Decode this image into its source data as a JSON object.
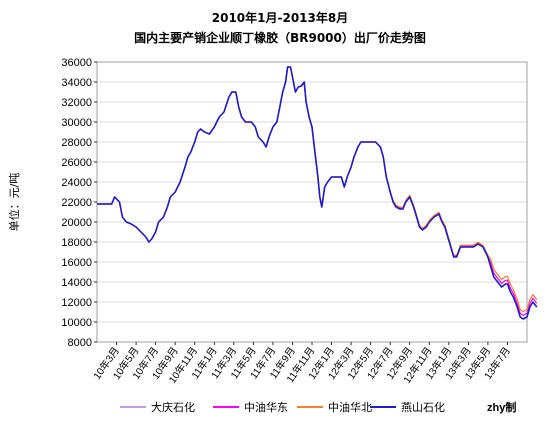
{
  "chart_data": {
    "type": "line",
    "title_line1": "2010年1月-2013年8月",
    "title_line2": "国内主要产销企业顺丁橡胶（BR9000）出厂价走势图",
    "ylabel": "单位：元/吨",
    "ylim": [
      8000,
      36000
    ],
    "ytick_step": 2000,
    "yticks": [
      "8000",
      "10000",
      "12000",
      "14000",
      "16000",
      "18000",
      "20000",
      "22000",
      "24000",
      "26000",
      "28000",
      "30000",
      "32000",
      "34000",
      "36000"
    ],
    "xlim": [
      0,
      44
    ],
    "x_ticks": [
      {
        "x": 2,
        "label": "10年3月"
      },
      {
        "x": 4,
        "label": "10年5月"
      },
      {
        "x": 6,
        "label": "10年7月"
      },
      {
        "x": 8,
        "label": "10年9月"
      },
      {
        "x": 10,
        "label": "10年11月"
      },
      {
        "x": 12,
        "label": "11年1月"
      },
      {
        "x": 14,
        "label": "11年3月"
      },
      {
        "x": 16,
        "label": "11年5月"
      },
      {
        "x": 18,
        "label": "11年7月"
      },
      {
        "x": 20,
        "label": "11年9月"
      },
      {
        "x": 22,
        "label": "11年11月"
      },
      {
        "x": 24,
        "label": "12年1月"
      },
      {
        "x": 26,
        "label": "12年3月"
      },
      {
        "x": 28,
        "label": "12年5月"
      },
      {
        "x": 30,
        "label": "12年7月"
      },
      {
        "x": 32,
        "label": "12年9月"
      },
      {
        "x": 34,
        "label": "12年11月"
      },
      {
        "x": 36,
        "label": "13年1月"
      },
      {
        "x": 38,
        "label": "13年3月"
      },
      {
        "x": 40,
        "label": "13年5月"
      },
      {
        "x": 42,
        "label": "13年7月"
      }
    ],
    "grid": true,
    "legend_position": "bottom",
    "credit": "zhy制",
    "base_points": [
      [
        0,
        21800
      ],
      [
        1.5,
        21800
      ],
      [
        1.8,
        22500
      ],
      [
        2.3,
        22000
      ],
      [
        2.6,
        20500
      ],
      [
        3,
        20000
      ],
      [
        3.5,
        19800
      ],
      [
        4,
        19500
      ],
      [
        4.5,
        19000
      ],
      [
        5,
        18500
      ],
      [
        5.3,
        18000
      ],
      [
        5.6,
        18300
      ],
      [
        6,
        19000
      ],
      [
        6.3,
        20000
      ],
      [
        6.8,
        20500
      ],
      [
        7.2,
        21500
      ],
      [
        7.5,
        22500
      ],
      [
        8,
        23000
      ],
      [
        8.5,
        24000
      ],
      [
        9,
        25500
      ],
      [
        9.3,
        26500
      ],
      [
        9.6,
        27000
      ],
      [
        10,
        28000
      ],
      [
        10.3,
        29000
      ],
      [
        10.6,
        29300
      ],
      [
        11,
        29000
      ],
      [
        11.5,
        28800
      ],
      [
        12,
        29500
      ],
      [
        12.5,
        30500
      ],
      [
        13,
        31000
      ],
      [
        13.5,
        32500
      ],
      [
        13.8,
        33000
      ],
      [
        14.2,
        33000
      ],
      [
        14.5,
        31500
      ],
      [
        14.8,
        30500
      ],
      [
        15.2,
        30000
      ],
      [
        15.8,
        30000
      ],
      [
        16.2,
        29500
      ],
      [
        16.5,
        28500
      ],
      [
        17,
        28000
      ],
      [
        17.3,
        27500
      ],
      [
        17.6,
        28500
      ],
      [
        18,
        29500
      ],
      [
        18.4,
        30000
      ],
      [
        18.7,
        31500
      ],
      [
        19,
        33000
      ],
      [
        19.3,
        34000
      ],
      [
        19.5,
        35500
      ],
      [
        19.8,
        35500
      ],
      [
        20,
        34500
      ],
      [
        20.3,
        33000
      ],
      [
        20.6,
        33500
      ],
      [
        20.9,
        33600
      ],
      [
        21.2,
        34000
      ],
      [
        21.4,
        32000
      ],
      [
        21.7,
        30500
      ],
      [
        22,
        29500
      ],
      [
        22.3,
        27000
      ],
      [
        22.6,
        24500
      ],
      [
        22.8,
        22500
      ],
      [
        23,
        21500
      ],
      [
        23.3,
        23500
      ],
      [
        23.6,
        24000
      ],
      [
        24,
        24500
      ],
      [
        24.5,
        24500
      ],
      [
        25,
        24500
      ],
      [
        25.3,
        23500
      ],
      [
        25.6,
        24500
      ],
      [
        26,
        25500
      ],
      [
        26.3,
        26500
      ],
      [
        26.7,
        27500
      ],
      [
        27,
        28000
      ],
      [
        28,
        28000
      ],
      [
        28.5,
        28000
      ],
      [
        29,
        27500
      ],
      [
        29.3,
        26500
      ],
      [
        29.6,
        24500
      ],
      [
        30,
        23000
      ],
      [
        30.3,
        22000
      ],
      [
        30.6,
        21500
      ],
      [
        31,
        21300
      ],
      [
        31.3,
        21300
      ],
      [
        31.6,
        22000
      ],
      [
        32,
        22500
      ],
      [
        32.4,
        21500
      ],
      [
        32.7,
        20500
      ],
      [
        33,
        19500
      ],
      [
        33.3,
        19200
      ],
      [
        33.7,
        19500
      ],
      [
        34,
        20000
      ],
      [
        34.5,
        20500
      ],
      [
        35,
        20800
      ],
      [
        35.3,
        20000
      ],
      [
        35.6,
        19500
      ],
      [
        35.9,
        18500
      ],
      [
        36.2,
        17500
      ],
      [
        36.5,
        16500
      ],
      [
        36.8,
        16500
      ],
      [
        37.2,
        17500
      ],
      [
        38,
        17500
      ],
      [
        38.5,
        17500
      ],
      [
        39,
        17800
      ],
      [
        39.5,
        17500
      ],
      [
        40,
        16500
      ],
      [
        40.3,
        15500
      ],
      [
        40.6,
        14500
      ],
      [
        41,
        14000
      ],
      [
        41.4,
        13500
      ],
      [
        41.8,
        13800
      ],
      [
        42,
        13800
      ],
      [
        42.3,
        13000
      ],
      [
        42.6,
        12500
      ],
      [
        43,
        11500
      ],
      [
        43.3,
        10500
      ],
      [
        43.6,
        10300
      ],
      [
        44,
        10500
      ],
      [
        44.3,
        11500
      ],
      [
        44.6,
        12000
      ],
      [
        45,
        11500
      ]
    ],
    "series": [
      {
        "name": "大庆石化",
        "color": "#c59be8",
        "offset": 0,
        "width": 1.2
      },
      {
        "name": "中油华东",
        "color": "#ff00ff",
        "offset": 150,
        "width": 1.2
      },
      {
        "name": "中油华北",
        "color": "#ff7f2a",
        "offset": 300,
        "width": 1.2
      },
      {
        "name": "燕山石化",
        "color": "#1c1ccc",
        "offset": 0,
        "width": 1.6
      }
    ]
  }
}
